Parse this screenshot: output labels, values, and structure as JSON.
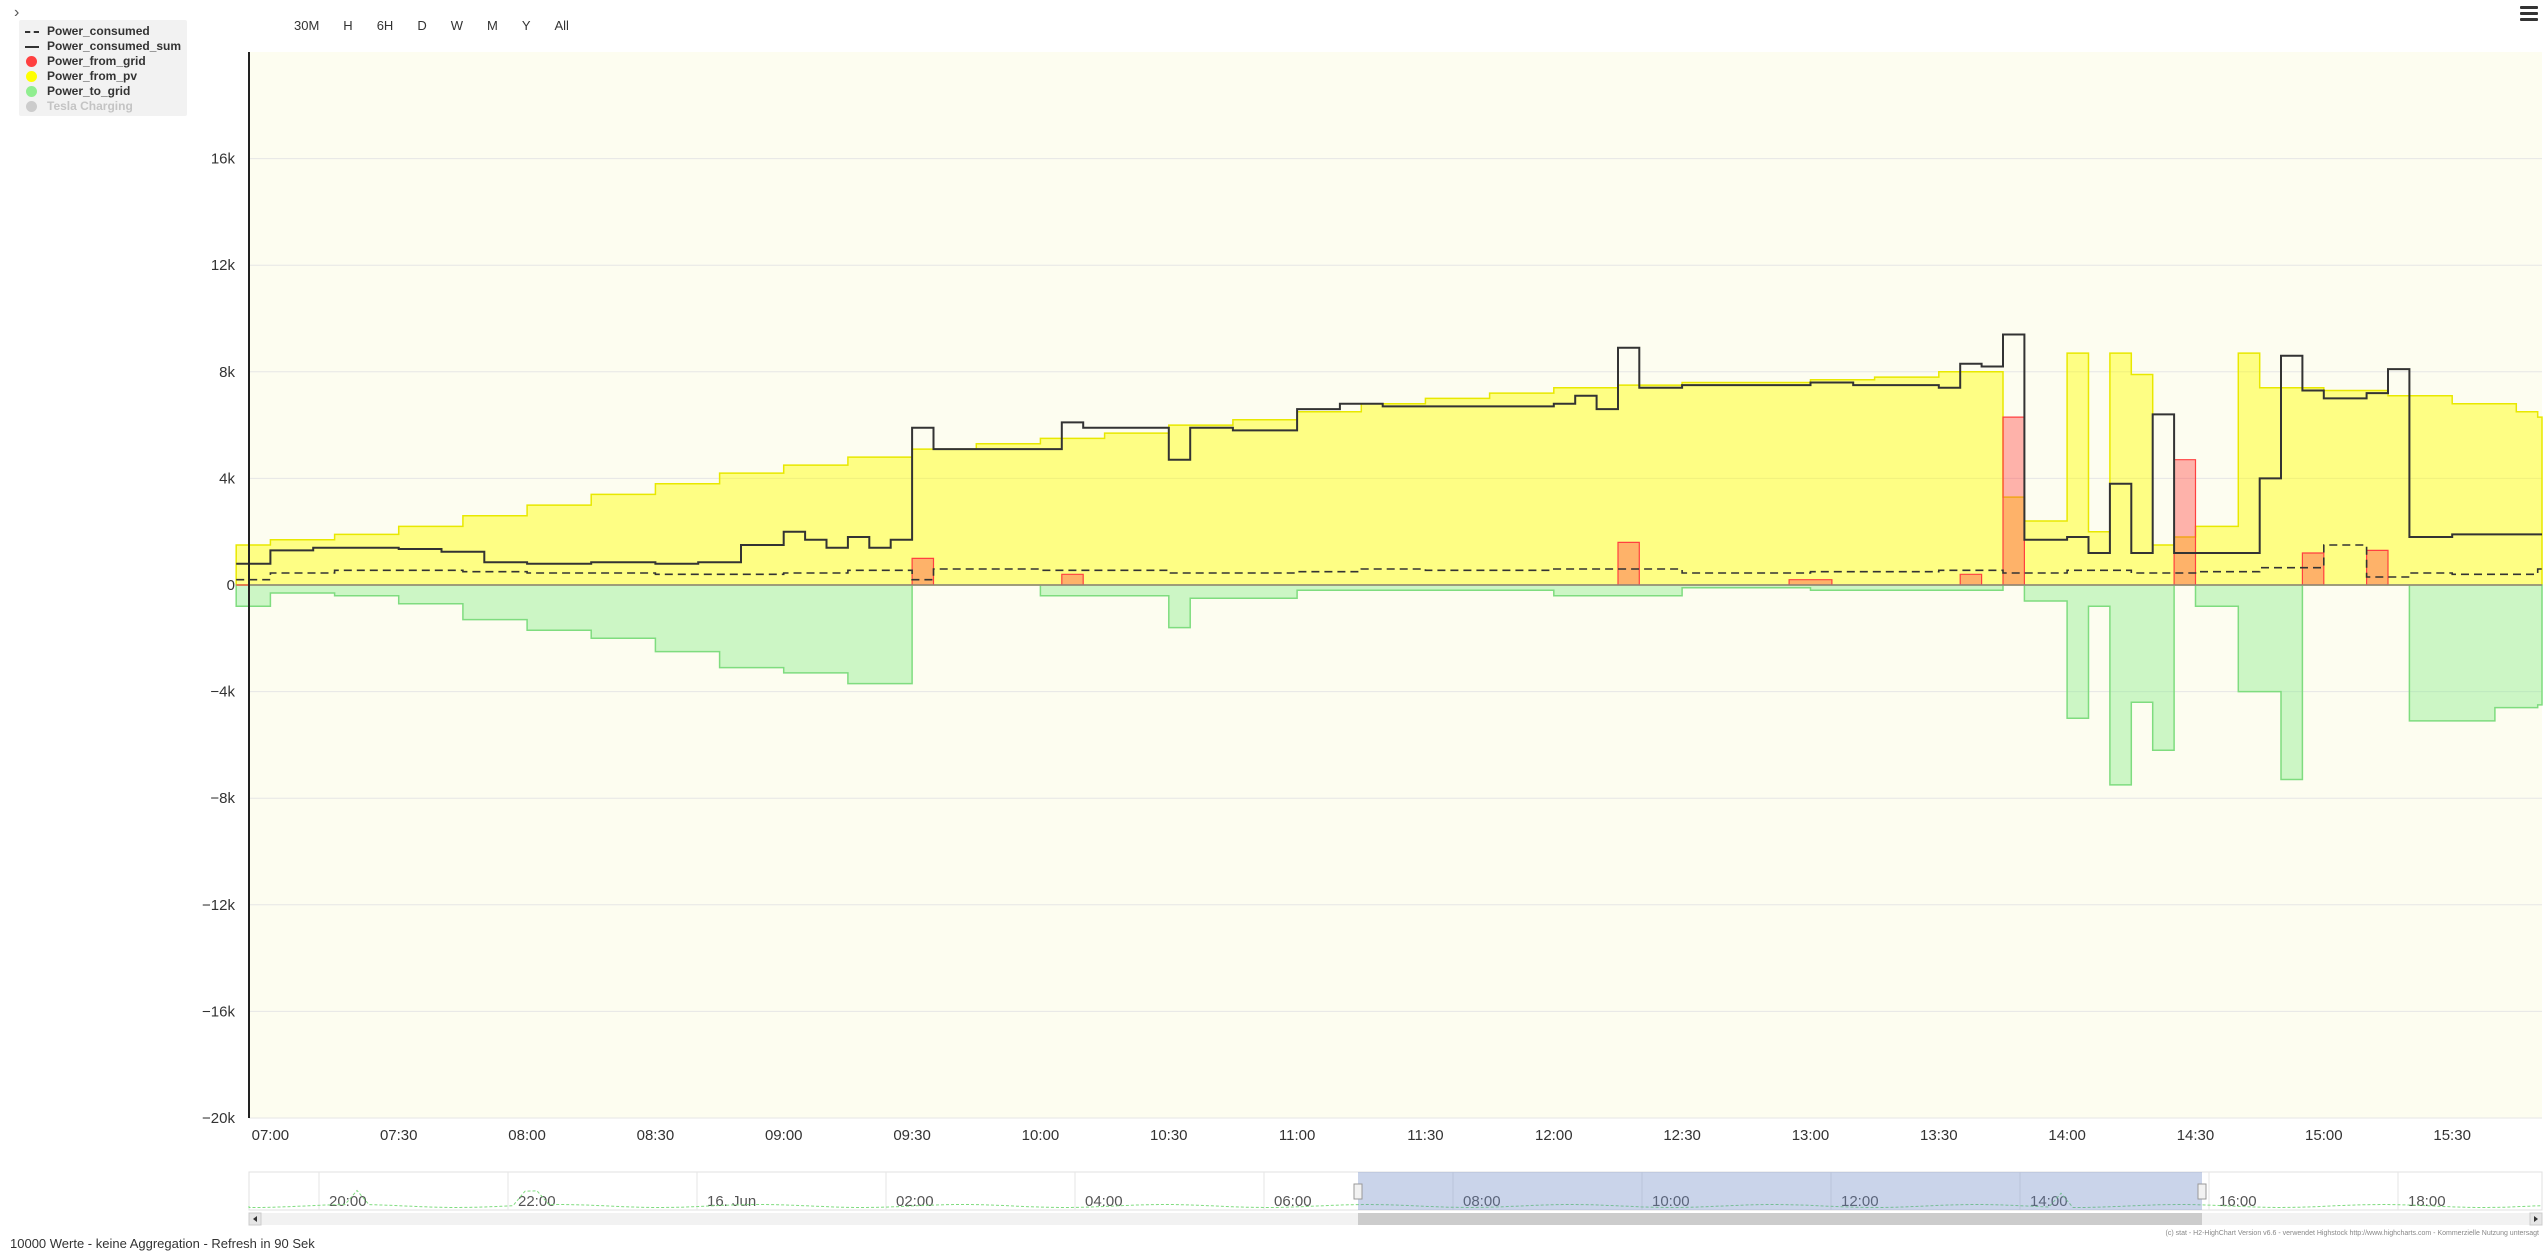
{
  "ui": {
    "collapse_glyph": "›",
    "range_buttons": [
      "30M",
      "H",
      "6H",
      "D",
      "W",
      "M",
      "Y",
      "All"
    ],
    "menu_icon": "hamburger-menu-icon",
    "footer_status": "10000 Werte - keine Aggregation - Refresh in 90 Sek",
    "credits": "(c) stat - H2-HighChart Version v6.6 - verwendet Highstock http://www.highcharts.com - Kommerzielle Nutzung untersagt"
  },
  "chart_data": {
    "type": "area",
    "step": true,
    "title": "",
    "xlabel": "",
    "ylabel": "",
    "ylim": [
      -20000,
      20000
    ],
    "y_ticks": [
      -20000,
      -16000,
      -12000,
      -8000,
      -4000,
      0,
      4000,
      8000,
      12000,
      16000
    ],
    "y_tick_labels": [
      "−20k",
      "−16k",
      "−12k",
      "−8k",
      "−4k",
      "0",
      "4k",
      "8k",
      "12k",
      "16k"
    ],
    "x_range_minutes": [
      415,
      951
    ],
    "x_ticks": [
      "07:00",
      "07:30",
      "08:00",
      "08:30",
      "09:00",
      "09:30",
      "10:00",
      "10:30",
      "11:00",
      "11:30",
      "12:00",
      "12:30",
      "13:00",
      "13:30",
      "14:00",
      "14:30",
      "15:00",
      "15:30"
    ],
    "grid": true,
    "legend_position": "top-left",
    "colors": {
      "plot_background": "#fdfdf0",
      "pv": "#ffff00",
      "grid_import": "#ff4040",
      "to_grid": "#90ee90",
      "consumed": "#333333"
    },
    "series": [
      {
        "name": "Power_consumed",
        "style": "dashed-line",
        "color": "#333333",
        "visible": true,
        "points": [
          [
            "06:52",
            200
          ],
          [
            "07:00",
            450
          ],
          [
            "07:15",
            550
          ],
          [
            "07:30",
            550
          ],
          [
            "07:45",
            500
          ],
          [
            "08:00",
            450
          ],
          [
            "08:30",
            400
          ],
          [
            "09:00",
            450
          ],
          [
            "09:15",
            550
          ],
          [
            "09:30",
            200
          ],
          [
            "09:35",
            600
          ],
          [
            "10:00",
            550
          ],
          [
            "10:30",
            450
          ],
          [
            "11:00",
            500
          ],
          [
            "11:15",
            600
          ],
          [
            "11:30",
            550
          ],
          [
            "12:00",
            600
          ],
          [
            "12:30",
            450
          ],
          [
            "13:00",
            500
          ],
          [
            "13:30",
            550
          ],
          [
            "13:45",
            450
          ],
          [
            "14:00",
            550
          ],
          [
            "14:15",
            450
          ],
          [
            "14:30",
            500
          ],
          [
            "14:45",
            650
          ],
          [
            "15:00",
            1500
          ],
          [
            "15:10",
            300
          ],
          [
            "15:20",
            450
          ],
          [
            "15:30",
            400
          ],
          [
            "15:50",
            600
          ]
        ]
      },
      {
        "name": "Power_consumed_sum",
        "style": "solid-line",
        "color": "#333333",
        "visible": true,
        "points": [
          [
            "06:52",
            800
          ],
          [
            "07:00",
            1300
          ],
          [
            "07:10",
            1400
          ],
          [
            "07:20",
            1400
          ],
          [
            "07:30",
            1350
          ],
          [
            "07:40",
            1250
          ],
          [
            "07:50",
            850
          ],
          [
            "08:00",
            800
          ],
          [
            "08:15",
            850
          ],
          [
            "08:30",
            800
          ],
          [
            "08:40",
            850
          ],
          [
            "08:50",
            1500
          ],
          [
            "09:00",
            2000
          ],
          [
            "09:05",
            1700
          ],
          [
            "09:10",
            1400
          ],
          [
            "09:15",
            1800
          ],
          [
            "09:20",
            1400
          ],
          [
            "09:25",
            1700
          ],
          [
            "09:30",
            5900
          ],
          [
            "09:35",
            5100
          ],
          [
            "10:00",
            5100
          ],
          [
            "10:05",
            6100
          ],
          [
            "10:10",
            5900
          ],
          [
            "10:30",
            4700
          ],
          [
            "10:35",
            5900
          ],
          [
            "10:45",
            5800
          ],
          [
            "11:00",
            6600
          ],
          [
            "11:10",
            6800
          ],
          [
            "11:20",
            6700
          ],
          [
            "12:00",
            6800
          ],
          [
            "12:05",
            7100
          ],
          [
            "12:10",
            6600
          ],
          [
            "12:15",
            8900
          ],
          [
            "12:20",
            7400
          ],
          [
            "12:30",
            7500
          ],
          [
            "13:00",
            7600
          ],
          [
            "13:10",
            7500
          ],
          [
            "13:30",
            7400
          ],
          [
            "13:35",
            8300
          ],
          [
            "13:40",
            8200
          ],
          [
            "13:45",
            9400
          ],
          [
            "13:50",
            1700
          ],
          [
            "14:00",
            1800
          ],
          [
            "14:05",
            1200
          ],
          [
            "14:10",
            3800
          ],
          [
            "14:15",
            1200
          ],
          [
            "14:20",
            6400
          ],
          [
            "14:25",
            1200
          ],
          [
            "14:40",
            1200
          ],
          [
            "14:45",
            4000
          ],
          [
            "14:50",
            8600
          ],
          [
            "14:55",
            7300
          ],
          [
            "15:00",
            7000
          ],
          [
            "15:10",
            7200
          ],
          [
            "15:15",
            8100
          ],
          [
            "15:20",
            1800
          ],
          [
            "15:30",
            1900
          ],
          [
            "15:50",
            1900
          ]
        ]
      },
      {
        "name": "Power_from_grid",
        "style": "area",
        "color": "#ff4040",
        "visible": true,
        "points": [
          [
            "06:52",
            0
          ],
          [
            "09:30",
            1000
          ],
          [
            "09:35",
            0
          ],
          [
            "10:05",
            400
          ],
          [
            "10:10",
            0
          ],
          [
            "12:15",
            1600
          ],
          [
            "12:20",
            0
          ],
          [
            "12:55",
            200
          ],
          [
            "13:05",
            0
          ],
          [
            "13:35",
            400
          ],
          [
            "13:40",
            0
          ],
          [
            "13:45",
            6300
          ],
          [
            "13:50",
            0
          ],
          [
            "14:25",
            4700
          ],
          [
            "14:30",
            0
          ],
          [
            "14:55",
            1200
          ],
          [
            "15:00",
            0
          ],
          [
            "15:10",
            1300
          ],
          [
            "15:15",
            0
          ],
          [
            "15:50",
            0
          ]
        ]
      },
      {
        "name": "Power_from_pv",
        "style": "area",
        "color": "#ffff00",
        "visible": true,
        "points": [
          [
            "06:52",
            1500
          ],
          [
            "07:00",
            1700
          ],
          [
            "07:15",
            1900
          ],
          [
            "07:30",
            2200
          ],
          [
            "07:45",
            2600
          ],
          [
            "08:00",
            3000
          ],
          [
            "08:15",
            3400
          ],
          [
            "08:30",
            3800
          ],
          [
            "08:45",
            4200
          ],
          [
            "09:00",
            4500
          ],
          [
            "09:15",
            4800
          ],
          [
            "09:30",
            5100
          ],
          [
            "09:45",
            5300
          ],
          [
            "10:00",
            5500
          ],
          [
            "10:15",
            5700
          ],
          [
            "10:30",
            6000
          ],
          [
            "10:45",
            6200
          ],
          [
            "11:00",
            6500
          ],
          [
            "11:15",
            6800
          ],
          [
            "11:30",
            7000
          ],
          [
            "11:45",
            7200
          ],
          [
            "12:00",
            7400
          ],
          [
            "12:15",
            7500
          ],
          [
            "12:30",
            7600
          ],
          [
            "12:45",
            7600
          ],
          [
            "13:00",
            7700
          ],
          [
            "13:15",
            7800
          ],
          [
            "13:30",
            8000
          ],
          [
            "13:45",
            3300
          ],
          [
            "13:50",
            2400
          ],
          [
            "14:00",
            8700
          ],
          [
            "14:05",
            2000
          ],
          [
            "14:10",
            8700
          ],
          [
            "14:15",
            7900
          ],
          [
            "14:20",
            1500
          ],
          [
            "14:25",
            1800
          ],
          [
            "14:30",
            2200
          ],
          [
            "14:40",
            8700
          ],
          [
            "14:45",
            7400
          ],
          [
            "15:00",
            7300
          ],
          [
            "15:15",
            7100
          ],
          [
            "15:30",
            6800
          ],
          [
            "15:45",
            6500
          ],
          [
            "15:50",
            6300
          ]
        ]
      },
      {
        "name": "Power_to_grid",
        "style": "area",
        "color": "#90ee90",
        "visible": true,
        "points": [
          [
            "06:52",
            -800
          ],
          [
            "07:00",
            -300
          ],
          [
            "07:15",
            -400
          ],
          [
            "07:30",
            -700
          ],
          [
            "07:45",
            -1300
          ],
          [
            "08:00",
            -1700
          ],
          [
            "08:15",
            -2000
          ],
          [
            "08:30",
            -2500
          ],
          [
            "08:45",
            -3100
          ],
          [
            "09:00",
            -3300
          ],
          [
            "09:15",
            -3700
          ],
          [
            "09:30",
            0
          ],
          [
            "10:00",
            -400
          ],
          [
            "10:30",
            -1600
          ],
          [
            "10:35",
            -500
          ],
          [
            "11:00",
            -200
          ],
          [
            "12:00",
            -400
          ],
          [
            "12:30",
            -100
          ],
          [
            "13:00",
            -200
          ],
          [
            "13:35",
            -200
          ],
          [
            "13:45",
            0
          ],
          [
            "13:50",
            -600
          ],
          [
            "14:00",
            -5000
          ],
          [
            "14:05",
            -800
          ],
          [
            "14:10",
            -7500
          ],
          [
            "14:15",
            -4400
          ],
          [
            "14:20",
            -6200
          ],
          [
            "14:25",
            0
          ],
          [
            "14:30",
            -800
          ],
          [
            "14:40",
            -4000
          ],
          [
            "14:50",
            -7300
          ],
          [
            "14:55",
            0
          ],
          [
            "15:20",
            -5100
          ],
          [
            "15:40",
            -4600
          ],
          [
            "15:50",
            -4500
          ]
        ]
      },
      {
        "name": "Tesla Charging",
        "style": "area",
        "color": "#c0c0c0",
        "visible": false,
        "points": []
      }
    ],
    "navigator": {
      "x_ticks": [
        "20:00",
        "22:00",
        "16. Jun",
        "02:00",
        "04:00",
        "06:00",
        "08:00",
        "10:00",
        "12:00",
        "14:00",
        "16:00",
        "18:00"
      ],
      "selected_range": [
        "06:52",
        "15:50"
      ]
    }
  }
}
